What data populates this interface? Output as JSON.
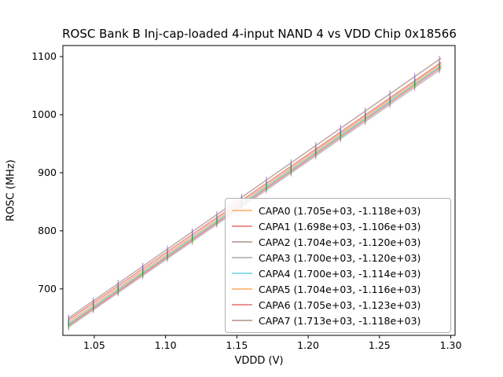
{
  "chart_data": {
    "type": "line",
    "title": "ROSC Bank B Inj-cap-loaded 4-input NAND 4 vs VDD Chip 0x18566",
    "xlabel": "VDDD (V)",
    "ylabel": "ROSC (MHz)",
    "xlim": [
      1.028,
      1.303
    ],
    "ylim": [
      620,
      1119
    ],
    "xticks": [
      1.05,
      1.1,
      1.15,
      1.2,
      1.25,
      1.3
    ],
    "yticks": [
      700,
      800,
      900,
      1000,
      1100
    ],
    "grid": false,
    "legend_position": "lower right",
    "x_fit_range": [
      1.032,
      1.293
    ],
    "x_data_points": [
      1.032,
      1.0493,
      1.0667,
      1.084,
      1.1013,
      1.1187,
      1.136,
      1.1533,
      1.1707,
      1.188,
      1.2053,
      1.2227,
      1.24,
      1.2573,
      1.2747,
      1.292
    ],
    "error_halfheight_mhz": 6,
    "series": [
      {
        "name": "CAPA0",
        "label": "CAPA0 (1.705e+03, -1.118e+03)",
        "slope": 1705,
        "intercept": -1118,
        "line_color": "#ffbf86",
        "marker_color": "#1f77b4"
      },
      {
        "name": "CAPA1",
        "label": "CAPA1 (1.698e+03, -1.106e+03)",
        "slope": 1698,
        "intercept": -1106,
        "line_color": "#eb9293",
        "marker_color": "#2ca02c"
      },
      {
        "name": "CAPA2",
        "label": "CAPA2 (1.704e+03, -1.120e+03)",
        "slope": 1704,
        "intercept": -1120,
        "line_color": "#c5aaa5",
        "marker_color": "#9467bd"
      },
      {
        "name": "CAPA3",
        "label": "CAPA3 (1.700e+03, -1.120e+03)",
        "slope": 1700,
        "intercept": -1120,
        "line_color": "#bfbfbf",
        "marker_color": "#e377c2"
      },
      {
        "name": "CAPA4",
        "label": "CAPA4 (1.700e+03, -1.114e+03)",
        "slope": 1700,
        "intercept": -1114,
        "line_color": "#8bdfe7",
        "marker_color": "#bcbd22"
      },
      {
        "name": "CAPA5",
        "label": "CAPA5 (1.704e+03, -1.116e+03)",
        "slope": 1704,
        "intercept": -1116,
        "line_color": "#ffbf86",
        "marker_color": "#1f77b4"
      },
      {
        "name": "CAPA6",
        "label": "CAPA6 (1.705e+03, -1.123e+03)",
        "slope": 1705,
        "intercept": -1123,
        "line_color": "#eb9293",
        "marker_color": "#2ca02c"
      },
      {
        "name": "CAPA7",
        "label": "CAPA7 (1.713e+03, -1.118e+03)",
        "slope": 1713,
        "intercept": -1118,
        "line_color": "#c5aaa5",
        "marker_color": "#9467bd"
      }
    ]
  }
}
